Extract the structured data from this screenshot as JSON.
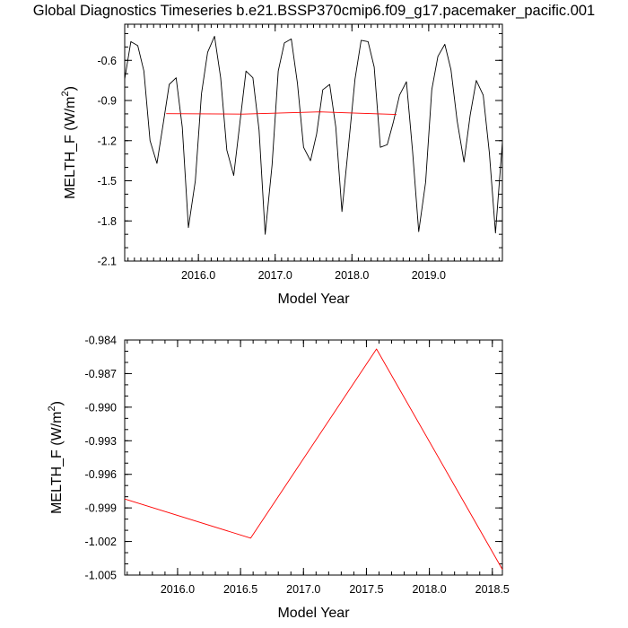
{
  "title": "Global Diagnostics Timeseries b.e21.BSSP370cmip6.f09_g17.pacemaker_pacific.001",
  "chart_data": [
    {
      "type": "line",
      "xlabel": "Model Year",
      "ylabel": "MELTH_F (W/m²)",
      "xlim": [
        2015.04,
        2019.96
      ],
      "ylim": [
        -2.1,
        -0.33
      ],
      "xticks": [
        2016.0,
        2017.0,
        2018.0,
        2019.0
      ],
      "xtick_labels": [
        "2016.0",
        "2017.0",
        "2018.0",
        "2019.0"
      ],
      "yticks": [
        -2.1,
        -1.8,
        -1.5,
        -1.2,
        -0.9,
        -0.6
      ],
      "ytick_labels": [
        "-2.1",
        "-1.8",
        "-1.5",
        "-1.2",
        "-0.9",
        "-0.6"
      ],
      "grid": false,
      "series": [
        {
          "color": "#000000",
          "x": [
            2015.04,
            2015.12,
            2015.21,
            2015.29,
            2015.37,
            2015.46,
            2015.54,
            2015.62,
            2015.71,
            2015.79,
            2015.87,
            2015.96,
            2016.04,
            2016.12,
            2016.21,
            2016.29,
            2016.37,
            2016.46,
            2016.54,
            2016.62,
            2016.71,
            2016.79,
            2016.87,
            2016.96,
            2017.04,
            2017.12,
            2017.21,
            2017.29,
            2017.37,
            2017.46,
            2017.54,
            2017.62,
            2017.71,
            2017.79,
            2017.87,
            2017.96,
            2018.04,
            2018.12,
            2018.21,
            2018.29,
            2018.37,
            2018.46,
            2018.54,
            2018.62,
            2018.71,
            2018.79,
            2018.87,
            2018.96,
            2019.04,
            2019.12,
            2019.21,
            2019.29,
            2019.37,
            2019.46,
            2019.54,
            2019.62,
            2019.71,
            2019.79,
            2019.87,
            2019.96
          ],
          "values": [
            -0.74,
            -0.46,
            -0.49,
            -0.68,
            -1.2,
            -1.37,
            -1.08,
            -0.78,
            -0.73,
            -1.1,
            -1.85,
            -1.5,
            -0.85,
            -0.54,
            -0.42,
            -0.73,
            -1.27,
            -1.46,
            -1.07,
            -0.68,
            -0.73,
            -1.12,
            -1.9,
            -1.38,
            -0.68,
            -0.47,
            -0.44,
            -0.77,
            -1.25,
            -1.35,
            -1.15,
            -0.82,
            -0.78,
            -1.1,
            -1.73,
            -1.21,
            -0.74,
            -0.45,
            -0.46,
            -0.65,
            -1.25,
            -1.23,
            -1.06,
            -0.86,
            -0.76,
            -1.28,
            -1.88,
            -1.51,
            -0.82,
            -0.57,
            -0.48,
            -0.67,
            -1.05,
            -1.36,
            -1.01,
            -0.75,
            -0.86,
            -1.29,
            -1.89,
            -1.21
          ]
        },
        {
          "color": "#ff0000",
          "x": [
            2015.58,
            2016.58,
            2017.58,
            2018.58
          ],
          "values": [
            -0.9982,
            -1.0017,
            -0.9848,
            -1.0045
          ]
        }
      ]
    },
    {
      "type": "line",
      "xlabel": "Model Year",
      "ylabel": "MELTH_F (W/m²)",
      "xlim": [
        2015.58,
        2018.58
      ],
      "ylim": [
        -1.005,
        -0.984
      ],
      "xticks": [
        2016.0,
        2016.5,
        2017.0,
        2017.5,
        2018.0,
        2018.5
      ],
      "xtick_labels": [
        "2016.0",
        "2016.5",
        "2017.0",
        "2017.5",
        "2018.0",
        "2018.5"
      ],
      "yticks": [
        -1.005,
        -1.002,
        -0.999,
        -0.996,
        -0.993,
        -0.99,
        -0.987,
        -0.984
      ],
      "ytick_labels": [
        "-1.005",
        "-1.002",
        "-0.999",
        "-0.996",
        "-0.993",
        "-0.990",
        "-0.987",
        "-0.984"
      ],
      "grid": false,
      "series": [
        {
          "color": "#ff0000",
          "x": [
            2015.58,
            2016.58,
            2017.58,
            2018.58
          ],
          "values": [
            -0.9982,
            -1.0017,
            -0.9848,
            -1.0045
          ]
        }
      ]
    }
  ]
}
